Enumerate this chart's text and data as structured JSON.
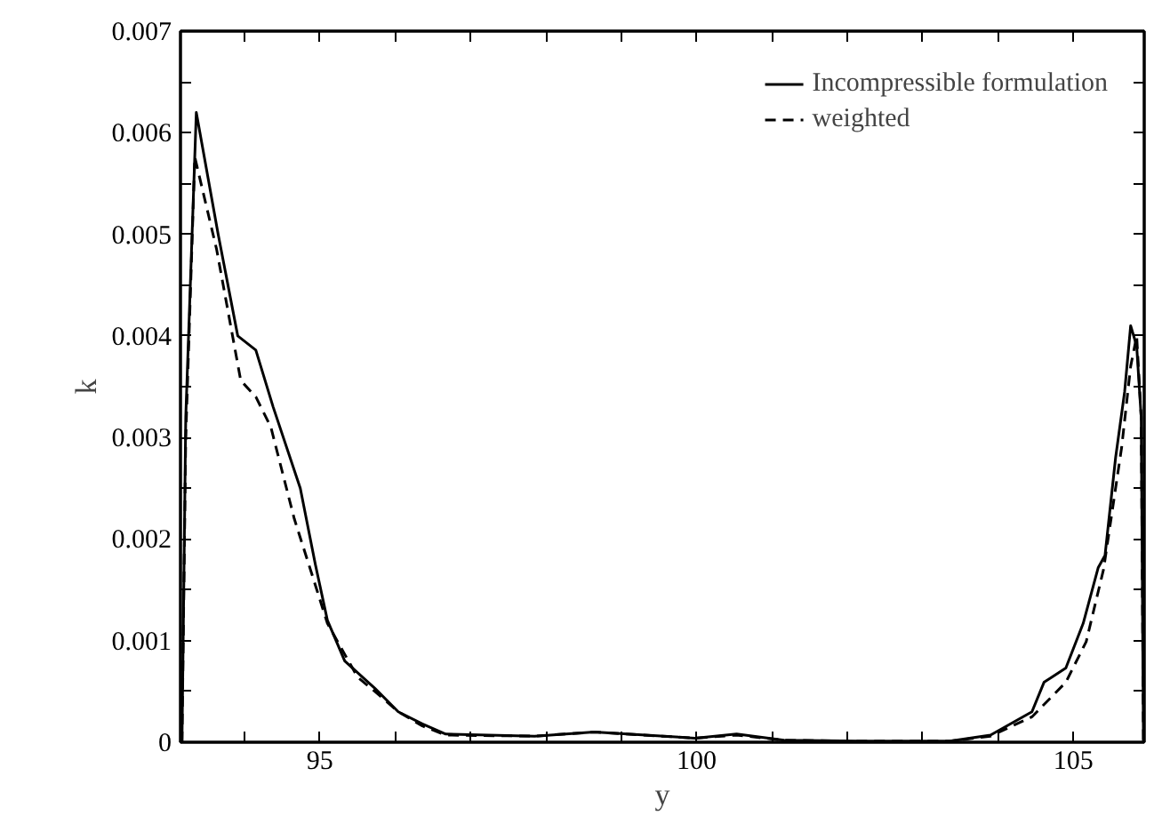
{
  "chart_data": {
    "type": "line",
    "xlabel": "y",
    "ylabel": "k",
    "xlim": [
      93.15,
      105.94
    ],
    "ylim": [
      0,
      0.007
    ],
    "xticks": [
      {
        "value": 94,
        "label": null
      },
      95,
      {
        "value": 96,
        "label": null
      },
      {
        "value": 97,
        "label": null
      },
      {
        "value": 98,
        "label": null
      },
      {
        "value": 99,
        "label": null
      },
      100,
      {
        "value": 101,
        "label": null
      },
      {
        "value": 102,
        "label": null
      },
      {
        "value": 103,
        "label": null
      },
      {
        "value": 104,
        "label": null
      },
      105
    ],
    "yticks": [
      0,
      {
        "value": 0.0005,
        "label": null
      },
      0.001,
      {
        "value": 0.0015,
        "label": null
      },
      0.002,
      {
        "value": 0.0025,
        "label": null
      },
      0.003,
      {
        "value": 0.0035,
        "label": null
      },
      0.004,
      {
        "value": 0.0045,
        "label": null
      },
      0.005,
      {
        "value": 0.0055,
        "label": null
      },
      0.006,
      {
        "value": 0.0065,
        "label": null
      },
      0.007
    ],
    "grid": false,
    "legend": "top right",
    "marker": "none",
    "series": [
      {
        "name": "Incompressible formulation",
        "color": "#000000",
        "line_style": "solid",
        "x": [
          93.17,
          93.22,
          93.36,
          93.65,
          93.91,
          94.15,
          94.38,
          94.74,
          94.94,
          95.1,
          95.33,
          95.73,
          96.04,
          96.36,
          96.67,
          97.85,
          98.64,
          99.98,
          100.53,
          101.16,
          102.18,
          103.36,
          103.9,
          104.45,
          104.61,
          104.9,
          105.13,
          105.33,
          105.42,
          105.56,
          105.68,
          105.76,
          105.84,
          105.9,
          105.93
        ],
        "values": [
          0,
          0.0032,
          0.0062,
          0.005,
          0.004,
          0.00386,
          0.0033,
          0.0025,
          0.00175,
          0.0012,
          0.0008,
          0.00053,
          0.0003,
          0.00018,
          8e-05,
          6e-05,
          0.0001,
          4e-05,
          8e-05,
          2e-05,
          1e-05,
          1e-05,
          7e-05,
          0.0003,
          0.00059,
          0.00073,
          0.00117,
          0.00172,
          0.00184,
          0.0028,
          0.00345,
          0.0041,
          0.0039,
          0.0032,
          0
        ]
      },
      {
        "name": "weighted",
        "color": "#000000",
        "line_style": "dashed",
        "x": [
          93.17,
          93.22,
          93.34,
          93.63,
          93.95,
          94.15,
          94.35,
          94.66,
          94.9,
          95.1,
          95.5,
          95.73,
          96.04,
          96.36,
          96.67,
          97.85,
          98.64,
          99.98,
          100.53,
          101.16,
          102.18,
          103.36,
          103.9,
          104.45,
          104.9,
          105.17,
          105.4,
          105.64,
          105.76,
          105.84,
          105.9,
          105.93
        ],
        "values": [
          0,
          0.003,
          0.00576,
          0.00485,
          0.00356,
          0.0034,
          0.0031,
          0.0022,
          0.00164,
          0.00117,
          0.00064,
          0.0005,
          0.0003,
          0.00016,
          7e-05,
          6e-05,
          0.0001,
          4e-05,
          7e-05,
          2e-05,
          1e-05,
          1e-05,
          6e-05,
          0.00025,
          0.00059,
          0.00099,
          0.0017,
          0.0029,
          0.0037,
          0.004,
          0.0032,
          0
        ]
      }
    ]
  }
}
